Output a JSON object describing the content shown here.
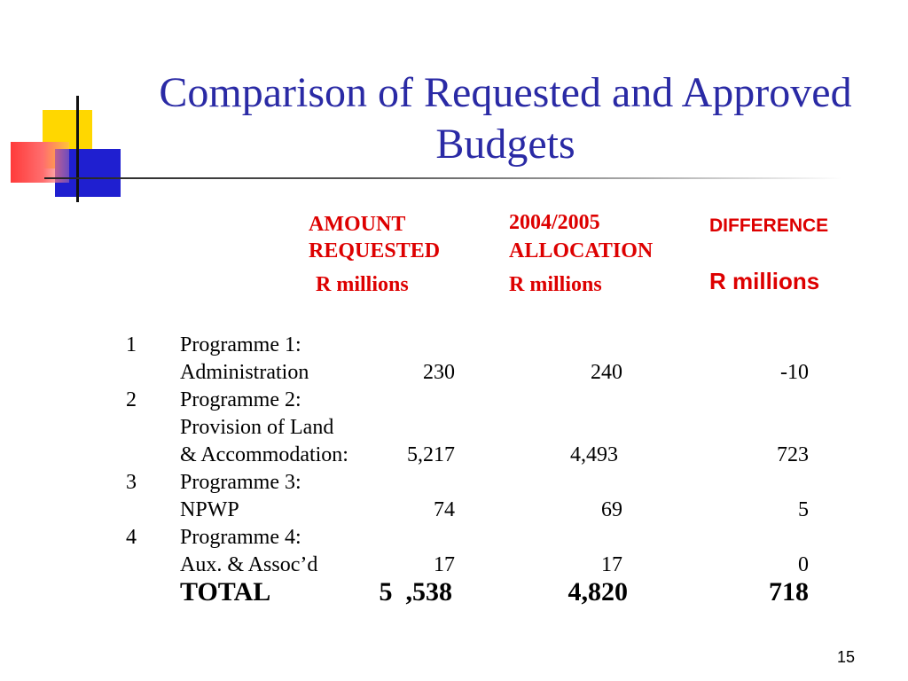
{
  "title": "Comparison of Requested and Approved Budgets",
  "headers": {
    "col1_line1": "AMOUNT",
    "col1_line2": "REQUESTED",
    "col1_unit": "R millions",
    "col2_line1": "2004/2005",
    "col2_line2": "ALLOCATION",
    "col2_unit": "R millions",
    "col3_line1": "DIFFERENCE",
    "col3_unit": "R millions"
  },
  "rows": [
    {
      "number": "1",
      "line1": "Programme 1:",
      "line2": "Administration",
      "requested": "230",
      "allocation": "240",
      "difference": "-10"
    },
    {
      "number": "2",
      "line1": "Programme 2:",
      "line2": "Provision of Land",
      "line3": "& Accommodation:",
      "requested": "5,217",
      "allocation": "4,493",
      "difference": "723"
    },
    {
      "number": "3",
      "line1": "Programme 3:",
      "line2": "NPWP",
      "requested": "74",
      "allocation": "69",
      "difference": "5"
    },
    {
      "number": "4",
      "line1": "Programme 4:",
      "line2": "Aux. & Assoc’d",
      "requested": "17",
      "allocation": "17",
      "difference": "0"
    }
  ],
  "total": {
    "label": "TOTAL",
    "requested": "5  ,538",
    "allocation": "4,820",
    "difference": "718"
  },
  "page_number": "15",
  "colors": {
    "title": "#2a2aa5",
    "header": "#dd0000"
  }
}
